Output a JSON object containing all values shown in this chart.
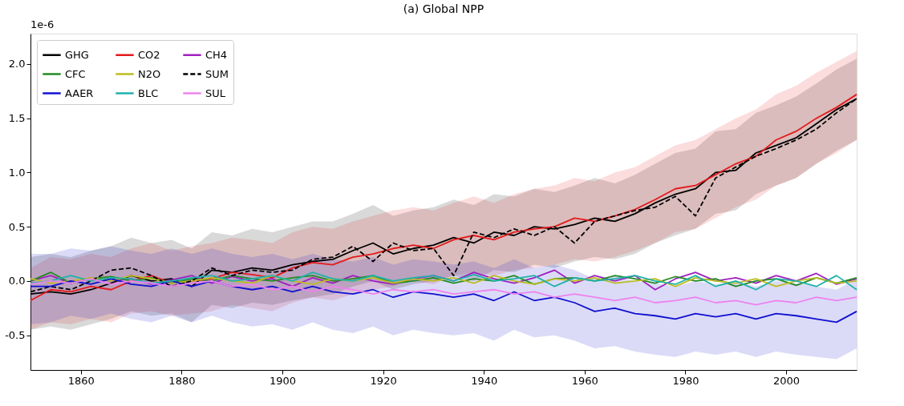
{
  "chart_data": {
    "type": "line",
    "title": "(a) Global NPP",
    "annotations": [
      "1e-6"
    ],
    "x": [
      1850,
      1854,
      1858,
      1862,
      1866,
      1870,
      1874,
      1878,
      1882,
      1886,
      1890,
      1894,
      1898,
      1902,
      1906,
      1910,
      1914,
      1918,
      1922,
      1926,
      1930,
      1934,
      1938,
      1942,
      1946,
      1950,
      1954,
      1958,
      1962,
      1966,
      1970,
      1974,
      1978,
      1982,
      1986,
      1990,
      1994,
      1998,
      2002,
      2006,
      2010,
      2014
    ],
    "xlim": [
      1850,
      2014
    ],
    "xticks": [
      1860,
      1880,
      1900,
      1920,
      1940,
      1960,
      1980,
      2000
    ],
    "ylim": [
      -0.82,
      2.28
    ],
    "yticks": [
      {
        "value": -0.5,
        "label": "-0.5"
      },
      {
        "value": 0,
        "label": "0.0"
      },
      {
        "value": 0.5,
        "label": "0.5"
      },
      {
        "value": 1,
        "label": "1.0"
      },
      {
        "value": 1.5,
        "label": "1.5"
      },
      {
        "value": 2,
        "label": "2.0"
      }
    ],
    "grid": false,
    "legend": "top left",
    "marker": "none",
    "series": [
      {
        "name": "GHG",
        "color": "#000000",
        "line_style": "solid",
        "values": [
          -0.12,
          -0.1,
          -0.12,
          -0.08,
          -0.02,
          0.05,
          0.0,
          0.02,
          -0.05,
          0.1,
          0.08,
          0.12,
          0.1,
          0.15,
          0.18,
          0.2,
          0.28,
          0.35,
          0.25,
          0.3,
          0.33,
          0.4,
          0.35,
          0.45,
          0.42,
          0.5,
          0.48,
          0.52,
          0.58,
          0.55,
          0.62,
          0.72,
          0.8,
          0.85,
          1.0,
          1.02,
          1.18,
          1.25,
          1.32,
          1.45,
          1.58,
          1.68
        ],
        "lower": [
          -0.45,
          -0.42,
          -0.45,
          -0.4,
          -0.35,
          -0.28,
          -0.32,
          -0.3,
          -0.38,
          -0.22,
          -0.25,
          -0.2,
          -0.22,
          -0.18,
          -0.15,
          -0.12,
          -0.05,
          0.0,
          -0.08,
          -0.03,
          0.0,
          0.05,
          0.0,
          0.1,
          0.08,
          0.15,
          0.12,
          0.18,
          0.22,
          0.2,
          0.25,
          0.35,
          0.42,
          0.48,
          0.62,
          0.65,
          0.8,
          0.88,
          0.95,
          1.08,
          1.2,
          1.3
        ],
        "upper": [
          0.22,
          0.25,
          0.22,
          0.28,
          0.32,
          0.4,
          0.35,
          0.38,
          0.3,
          0.45,
          0.42,
          0.48,
          0.45,
          0.5,
          0.55,
          0.55,
          0.62,
          0.7,
          0.6,
          0.65,
          0.68,
          0.75,
          0.7,
          0.8,
          0.78,
          0.85,
          0.82,
          0.88,
          0.95,
          0.9,
          0.98,
          1.08,
          1.18,
          1.22,
          1.38,
          1.4,
          1.55,
          1.62,
          1.7,
          1.82,
          1.95,
          2.05
        ]
      },
      {
        "name": "CO2",
        "color": "#e41a1c",
        "line_style": "solid",
        "values": [
          -0.18,
          -0.08,
          -0.1,
          -0.05,
          -0.08,
          0.0,
          0.05,
          -0.02,
          0.0,
          0.02,
          0.08,
          0.06,
          0.03,
          0.12,
          0.17,
          0.15,
          0.22,
          0.25,
          0.3,
          0.33,
          0.3,
          0.38,
          0.42,
          0.38,
          0.45,
          0.48,
          0.5,
          0.58,
          0.55,
          0.6,
          0.66,
          0.75,
          0.85,
          0.88,
          0.98,
          1.08,
          1.15,
          1.3,
          1.38,
          1.5,
          1.6,
          1.72
        ],
        "lower": [
          -0.45,
          -0.38,
          -0.4,
          -0.35,
          -0.38,
          -0.3,
          -0.28,
          -0.32,
          -0.3,
          -0.28,
          -0.22,
          -0.25,
          -0.28,
          -0.2,
          -0.15,
          -0.18,
          -0.12,
          -0.08,
          -0.05,
          0.0,
          -0.03,
          0.05,
          0.08,
          0.05,
          0.1,
          0.12,
          0.15,
          0.2,
          0.18,
          0.22,
          0.28,
          0.35,
          0.45,
          0.48,
          0.58,
          0.68,
          0.75,
          0.88,
          0.95,
          1.08,
          1.18,
          1.3
        ],
        "upper": [
          0.12,
          0.22,
          0.2,
          0.25,
          0.22,
          0.3,
          0.35,
          0.28,
          0.32,
          0.35,
          0.4,
          0.38,
          0.35,
          0.45,
          0.5,
          0.48,
          0.55,
          0.6,
          0.65,
          0.68,
          0.65,
          0.72,
          0.78,
          0.72,
          0.8,
          0.85,
          0.88,
          0.95,
          0.92,
          1.0,
          1.05,
          1.15,
          1.25,
          1.3,
          1.4,
          1.5,
          1.58,
          1.72,
          1.8,
          1.92,
          2.02,
          2.12
        ]
      },
      {
        "name": "CH4",
        "color": "#a020c0",
        "line_style": "solid",
        "values": [
          0.0,
          0.05,
          -0.02,
          0.03,
          0.0,
          0.02,
          -0.03,
          0.01,
          0.05,
          -0.02,
          0.04,
          0.0,
          0.02,
          -0.05,
          0.03,
          -0.02,
          0.05,
          0.0,
          -0.03,
          0.02,
          0.05,
          0.0,
          0.08,
          0.02,
          -0.02,
          0.03,
          0.1,
          -0.02,
          0.05,
          0.0,
          0.05,
          -0.08,
          0.02,
          0.08,
          0.0,
          0.03,
          -0.02,
          0.05,
          0.0,
          0.07,
          -0.03,
          0.02
        ]
      },
      {
        "name": "CFC",
        "color": "#228b22",
        "line_style": "solid",
        "values": [
          0.0,
          0.08,
          -0.02,
          0.02,
          0.04,
          0.0,
          0.03,
          -0.02,
          0.02,
          0.0,
          0.05,
          0.02,
          0.0,
          0.03,
          0.05,
          0.0,
          0.02,
          0.05,
          -0.02,
          0.0,
          0.03,
          -0.02,
          0.02,
          0.0,
          0.05,
          -0.03,
          0.02,
          0.03,
          0.0,
          0.05,
          0.02,
          -0.02,
          0.04,
          0.0,
          0.02,
          -0.05,
          0.0,
          0.02,
          -0.04,
          0.03,
          -0.02,
          0.03
        ]
      },
      {
        "name": "N2O",
        "color": "#bcbd22",
        "line_style": "solid",
        "values": [
          0.02,
          -0.02,
          0.0,
          0.03,
          0.0,
          0.05,
          0.02,
          -0.02,
          0.0,
          0.03,
          0.0,
          -0.02,
          0.05,
          0.0,
          -0.03,
          0.02,
          0.0,
          0.03,
          -0.02,
          0.02,
          0.0,
          0.03,
          -0.02,
          0.05,
          0.0,
          -0.03,
          0.02,
          0.0,
          0.03,
          -0.02,
          0.0,
          0.02,
          -0.05,
          0.03,
          0.0,
          -0.02,
          0.02,
          -0.05,
          0.0,
          0.03,
          -0.02,
          0.0
        ]
      },
      {
        "name": "SUM",
        "color": "#000000",
        "line_style": "dashed",
        "values": [
          -0.1,
          -0.05,
          -0.08,
          0.0,
          0.1,
          0.12,
          0.05,
          -0.05,
          0.0,
          0.12,
          0.05,
          0.1,
          0.08,
          0.1,
          0.2,
          0.22,
          0.32,
          0.18,
          0.35,
          0.28,
          0.3,
          0.05,
          0.45,
          0.4,
          0.48,
          0.42,
          0.5,
          0.35,
          0.55,
          0.6,
          0.65,
          0.68,
          0.78,
          0.6,
          0.95,
          1.05,
          1.15,
          1.22,
          1.3,
          1.4,
          1.55,
          1.68
        ]
      },
      {
        "name": "AAER",
        "color": "#1010d0",
        "line_style": "solid",
        "values": [
          -0.05,
          -0.05,
          0.0,
          -0.03,
          0.02,
          -0.03,
          -0.05,
          0.0,
          -0.05,
          0.0,
          -0.05,
          -0.08,
          -0.05,
          -0.1,
          -0.05,
          -0.1,
          -0.12,
          -0.08,
          -0.15,
          -0.1,
          -0.12,
          -0.15,
          -0.12,
          -0.18,
          -0.1,
          -0.18,
          -0.15,
          -0.2,
          -0.28,
          -0.25,
          -0.3,
          -0.32,
          -0.35,
          -0.3,
          -0.33,
          -0.3,
          -0.35,
          -0.3,
          -0.32,
          -0.35,
          -0.38,
          -0.28
        ],
        "lower": [
          -0.4,
          -0.38,
          -0.32,
          -0.35,
          -0.3,
          -0.35,
          -0.38,
          -0.32,
          -0.38,
          -0.32,
          -0.38,
          -0.42,
          -0.4,
          -0.45,
          -0.38,
          -0.45,
          -0.48,
          -0.42,
          -0.5,
          -0.45,
          -0.48,
          -0.5,
          -0.48,
          -0.55,
          -0.45,
          -0.52,
          -0.5,
          -0.55,
          -0.62,
          -0.6,
          -0.65,
          -0.68,
          -0.7,
          -0.65,
          -0.68,
          -0.65,
          -0.7,
          -0.65,
          -0.68,
          -0.7,
          -0.72,
          -0.62
        ],
        "upper": [
          0.25,
          0.25,
          0.3,
          0.28,
          0.32,
          0.28,
          0.25,
          0.3,
          0.25,
          0.3,
          0.25,
          0.22,
          0.25,
          0.2,
          0.25,
          0.2,
          0.18,
          0.22,
          0.15,
          0.2,
          0.18,
          0.15,
          0.18,
          0.12,
          0.2,
          0.12,
          0.15,
          0.1,
          0.02,
          0.05,
          0.0,
          -0.02,
          -0.05,
          0.0,
          -0.03,
          0.0,
          -0.05,
          0.0,
          -0.02,
          -0.05,
          -0.08,
          0.02
        ]
      },
      {
        "name": "BLC",
        "color": "#20b2aa",
        "line_style": "solid",
        "values": [
          -0.02,
          0.0,
          0.05,
          0.0,
          0.03,
          0.02,
          -0.02,
          0.0,
          0.03,
          0.05,
          0.0,
          0.02,
          0.05,
          0.0,
          0.08,
          0.02,
          0.0,
          0.05,
          0.0,
          0.03,
          0.05,
          0.0,
          0.06,
          0.0,
          0.02,
          0.05,
          -0.05,
          0.03,
          0.0,
          0.02,
          0.05,
          0.0,
          -0.03,
          0.05,
          -0.05,
          0.0,
          -0.08,
          0.02,
          0.0,
          -0.05,
          0.05,
          -0.08
        ]
      },
      {
        "name": "SUL",
        "color": "#ee82ee",
        "line_style": "solid",
        "values": [
          -0.03,
          0.0,
          -0.02,
          0.02,
          -0.03,
          0.0,
          -0.02,
          -0.05,
          -0.02,
          0.0,
          -0.05,
          -0.03,
          -0.08,
          -0.05,
          -0.1,
          -0.05,
          -0.08,
          -0.12,
          -0.08,
          -0.1,
          -0.08,
          -0.12,
          -0.1,
          -0.08,
          -0.12,
          -0.1,
          -0.15,
          -0.12,
          -0.15,
          -0.18,
          -0.15,
          -0.2,
          -0.18,
          -0.15,
          -0.2,
          -0.18,
          -0.22,
          -0.18,
          -0.2,
          -0.15,
          -0.18,
          -0.15
        ]
      }
    ]
  }
}
